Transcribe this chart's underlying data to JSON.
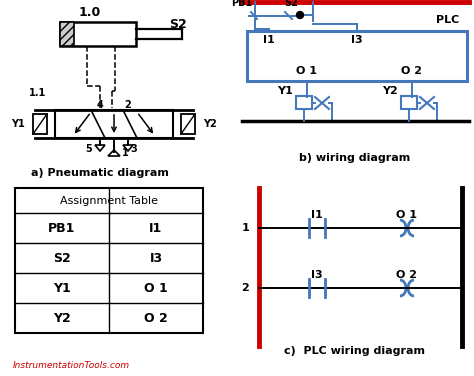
{
  "bg_color": "#ffffff",
  "blue": "#4477bb",
  "red": "#cc0000",
  "black": "#000000",
  "label_a": "a) Pneumatic diagram",
  "label_b": "b) wiring diagram",
  "label_c": "c)  PLC wiring diagram",
  "watermark": "InstrumentationTools.com",
  "table_title": "Assignment Table",
  "table_rows": [
    [
      "PB1",
      "I1"
    ],
    [
      "S2",
      "I3"
    ],
    [
      "Y1",
      "O 1"
    ],
    [
      "Y2",
      "O 2"
    ]
  ],
  "plc_label": "PLC",
  "cylinder_label": "1.0",
  "s2_label": "S2",
  "figsize": [
    4.74,
    3.76
  ],
  "dpi": 100
}
